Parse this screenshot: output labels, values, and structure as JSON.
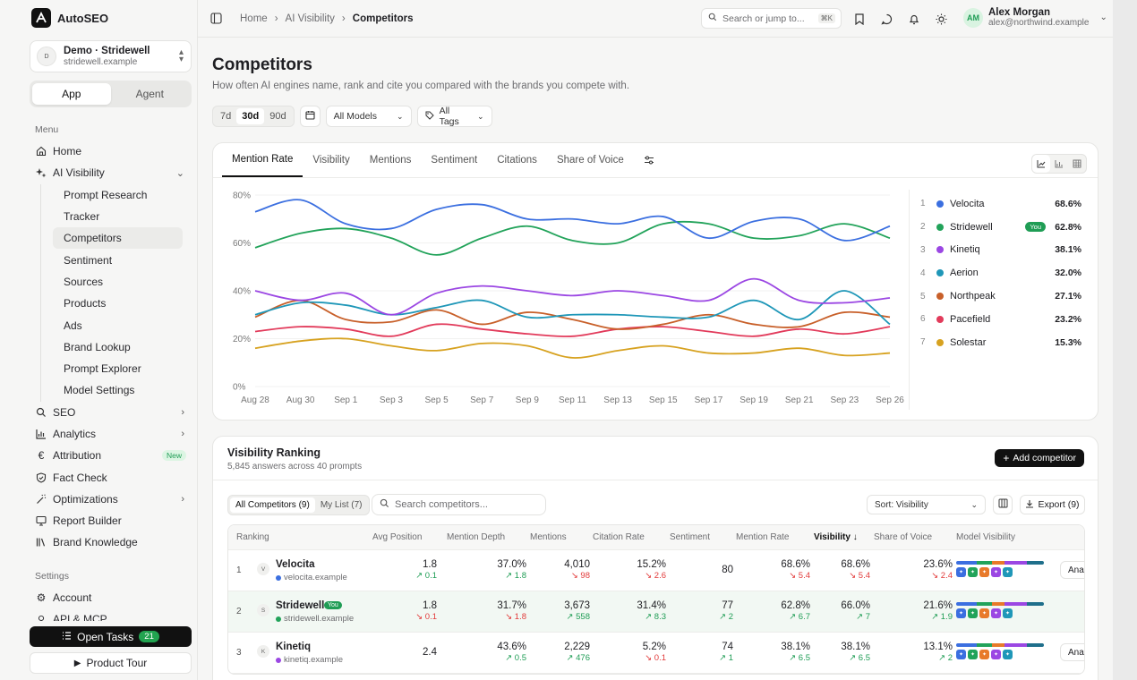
{
  "app": {
    "name": "AutoSEO"
  },
  "workspace": {
    "avatar": "D",
    "name": "Demo · Stridewell",
    "domain": "stridewell.example"
  },
  "mode_tabs": [
    {
      "label": "App"
    },
    {
      "label": "Agent"
    }
  ],
  "sidebar": {
    "menu_label": "Menu",
    "home": "Home",
    "ai_visibility": "AI Visibility",
    "ai_sub": [
      "Prompt Research",
      "Tracker",
      "Competitors",
      "Sentiment",
      "Sources",
      "Products",
      "Ads",
      "Brand Lookup",
      "Prompt Explorer",
      "Model Settings"
    ],
    "seo": "SEO",
    "analytics": "Analytics",
    "attribution": "Attribution",
    "attribution_badge": "New",
    "fact_check": "Fact Check",
    "optimizations": "Optimizations",
    "report_builder": "Report Builder",
    "brand_knowledge": "Brand Knowledge",
    "settings_label": "Settings",
    "account": "Account",
    "api_mcp": "API & MCP",
    "open_tasks": "Open Tasks",
    "open_tasks_count": "21",
    "product_tour": "Product Tour"
  },
  "breadcrumb": [
    "Home",
    "AI Visibility",
    "Competitors"
  ],
  "search": {
    "placeholder": "Search or jump to...",
    "shortcut": "⌘K"
  },
  "user": {
    "initials": "AM",
    "name": "Alex Morgan",
    "email": "alex@northwind.example"
  },
  "page": {
    "title": "Competitors",
    "subtitle": "How often AI engines name, rank and cite you compared with the brands you compete with."
  },
  "filters": {
    "ranges": [
      "7d",
      "30d",
      "90d"
    ],
    "models": "All Models",
    "tags": "All Tags"
  },
  "chart_tabs": [
    "Mention Rate",
    "Visibility",
    "Mentions",
    "Sentiment",
    "Citations",
    "Share of Voice"
  ],
  "chart_data": {
    "type": "line",
    "x": [
      "Aug 28",
      "Aug 30",
      "Sep 1",
      "Sep 3",
      "Sep 5",
      "Sep 7",
      "Sep 9",
      "Sep 11",
      "Sep 13",
      "Sep 15",
      "Sep 17",
      "Sep 19",
      "Sep 21",
      "Sep 23",
      "Sep 26"
    ],
    "ylim": [
      0,
      80
    ],
    "yticks": [
      "0%",
      "20%",
      "40%",
      "60%",
      "80%"
    ],
    "series": [
      {
        "name": "Velocita",
        "color": "#3b6fe0",
        "values": [
          73,
          78,
          68,
          66,
          74,
          76,
          70,
          70,
          68,
          71,
          62,
          69,
          70,
          61,
          67
        ]
      },
      {
        "name": "Stridewell",
        "color": "#22a35a",
        "values": [
          58,
          64,
          66,
          62,
          55,
          62,
          67,
          61,
          60,
          68,
          68,
          62,
          63,
          68,
          62
        ]
      },
      {
        "name": "Kinetiq",
        "color": "#9b47e3",
        "values": [
          40,
          36,
          39,
          30,
          39,
          42,
          40,
          38,
          40,
          38,
          36,
          45,
          36,
          35,
          37
        ]
      },
      {
        "name": "Aerion",
        "color": "#1f97b8",
        "values": [
          30,
          35,
          34,
          30,
          33,
          36,
          29,
          30,
          30,
          29,
          29,
          36,
          28,
          40,
          26
        ]
      },
      {
        "name": "Northpeak",
        "color": "#c8602a",
        "values": [
          29,
          36,
          28,
          27,
          32,
          26,
          31,
          28,
          24,
          26,
          30,
          26,
          25,
          31,
          29
        ]
      },
      {
        "name": "Pacefield",
        "color": "#e23b5b",
        "values": [
          23,
          25,
          24,
          21,
          26,
          24,
          22,
          21,
          24,
          25,
          23,
          21,
          24,
          22,
          25
        ]
      },
      {
        "name": "Solestar",
        "color": "#d7a220",
        "values": [
          16,
          19,
          20,
          17,
          15,
          18,
          17,
          12,
          15,
          17,
          14,
          14,
          16,
          13,
          14
        ]
      }
    ]
  },
  "legend": [
    {
      "rank": "1",
      "name": "Velocita",
      "value": "68.6%",
      "color": "#3b6fe0"
    },
    {
      "rank": "2",
      "name": "Stridewell",
      "value": "62.8%",
      "color": "#22a35a",
      "you": "You"
    },
    {
      "rank": "3",
      "name": "Kinetiq",
      "value": "38.1%",
      "color": "#9b47e3"
    },
    {
      "rank": "4",
      "name": "Aerion",
      "value": "32.0%",
      "color": "#1f97b8"
    },
    {
      "rank": "5",
      "name": "Northpeak",
      "value": "27.1%",
      "color": "#c8602a"
    },
    {
      "rank": "6",
      "name": "Pacefield",
      "value": "23.2%",
      "color": "#e23b5b"
    },
    {
      "rank": "7",
      "name": "Solestar",
      "value": "15.3%",
      "color": "#d7a220"
    }
  ],
  "ranking": {
    "title": "Visibility Ranking",
    "subtitle": "5,845 answers across 40 prompts",
    "add_button": "Add competitor",
    "tabs": [
      "All Competitors (9)",
      "My List (7)"
    ],
    "search_placeholder": "Search competitors...",
    "sort": "Sort: Visibility",
    "export": "Export (9)",
    "columns": [
      "Ranking",
      "Avg Position",
      "Mention Depth",
      "Mentions",
      "Citation Rate",
      "Sentiment",
      "Mention Rate",
      "Visibility",
      "Share of Voice",
      "Model Visibility"
    ],
    "rows": [
      {
        "rank": "1",
        "av": "V",
        "name": "Velocita",
        "domain": "velocita.example",
        "dot": "#3b6fe0",
        "avg_pos": "1.8",
        "avg_pos_d": "↗ 0.1",
        "depth": "37.0%",
        "depth_d": "↗ 1.8",
        "mentions": "4,010",
        "mentions_d": "↘ 98",
        "cit": "15.2%",
        "cit_d": "↘ 2.6",
        "sent": "80",
        "sent_d": "",
        "mr": "68.6%",
        "mr_d": "↘ 5.4",
        "vis": "68.6%",
        "vis_d": "↘ 5.4",
        "sov": "23.6%",
        "sov_d": "↘ 2.4",
        "action": "Analyze"
      },
      {
        "rank": "2",
        "av": "S",
        "name": "Stridewell",
        "you": "You",
        "domain": "stridewell.example",
        "dot": "#22a35a",
        "avg_pos": "1.8",
        "avg_pos_d": "↘ 0.1",
        "depth": "31.7%",
        "depth_d": "↘ 1.8",
        "mentions": "3,673",
        "mentions_d": "↗ 558",
        "cit": "31.4%",
        "cit_d": "↗ 8.3",
        "sent": "77",
        "sent_d": "↗ 2",
        "mr": "62.8%",
        "mr_d": "↗ 6.7",
        "vis": "66.0%",
        "vis_d": "↗ 7",
        "sov": "21.6%",
        "sov_d": "↗ 1.9",
        "action": ""
      },
      {
        "rank": "3",
        "av": "K",
        "name": "Kinetiq",
        "domain": "kinetiq.example",
        "dot": "#9b47e3",
        "avg_pos": "2.4",
        "avg_pos_d": "",
        "depth": "43.6%",
        "depth_d": "↗ 0.5",
        "mentions": "2,229",
        "mentions_d": "↗ 476",
        "cit": "5.2%",
        "cit_d": "↘ 0.1",
        "sent": "74",
        "sent_d": "↗ 1",
        "mr": "38.1%",
        "mr_d": "↗ 6.5",
        "vis": "38.1%",
        "vis_d": "↗ 6.5",
        "sov": "13.1%",
        "sov_d": "↗ 2",
        "action": "Analyze"
      }
    ]
  }
}
